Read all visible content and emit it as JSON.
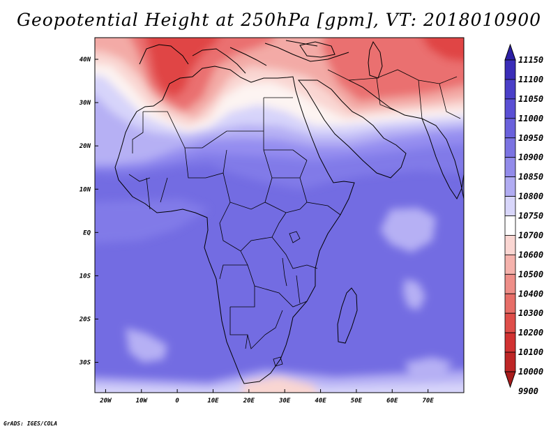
{
  "title": "Geopotential Height at 250hPa [gpm], VT: 2018010900",
  "credit": "GrADS: IGES/COLA",
  "map": {
    "lon_labels": [
      "20W",
      "10W",
      "0",
      "10E",
      "20E",
      "30E",
      "40E",
      "50E",
      "60E",
      "70E"
    ],
    "lat_labels": [
      "40N",
      "30N",
      "20N",
      "10N",
      "EQ",
      "10S",
      "20S",
      "30S"
    ],
    "field_colors": {
      "deep_red": "#e04444",
      "red": "#ea7070",
      "light_red": "#f3aaa6",
      "pale_red": "#f9d6d2",
      "white": "#fdf4f2",
      "pale_blue": "#d7d4fa",
      "light_blue": "#b6b0f4",
      "blue": "#948df0",
      "mid_blue": "#817ae8",
      "deep_blue": "#736ce2"
    }
  },
  "colorbar": {
    "levels": [
      "11150",
      "11100",
      "11050",
      "11000",
      "10950",
      "10900",
      "10850",
      "10800",
      "10750",
      "10700",
      "10600",
      "10500",
      "10400",
      "10300",
      "10200",
      "10100",
      "10000",
      "9900"
    ],
    "colors": [
      "#2c1fa4",
      "#3a2db8",
      "#4a3fc8",
      "#5a4fd4",
      "#6a61dc",
      "#7b73e2",
      "#928bea",
      "#b1acf2",
      "#d8d6fa",
      "#ffffff",
      "#fad6d2",
      "#f5b2ac",
      "#ee8e88",
      "#e76e68",
      "#df4e4a",
      "#d13232",
      "#be2626",
      "#a81c1c"
    ]
  }
}
